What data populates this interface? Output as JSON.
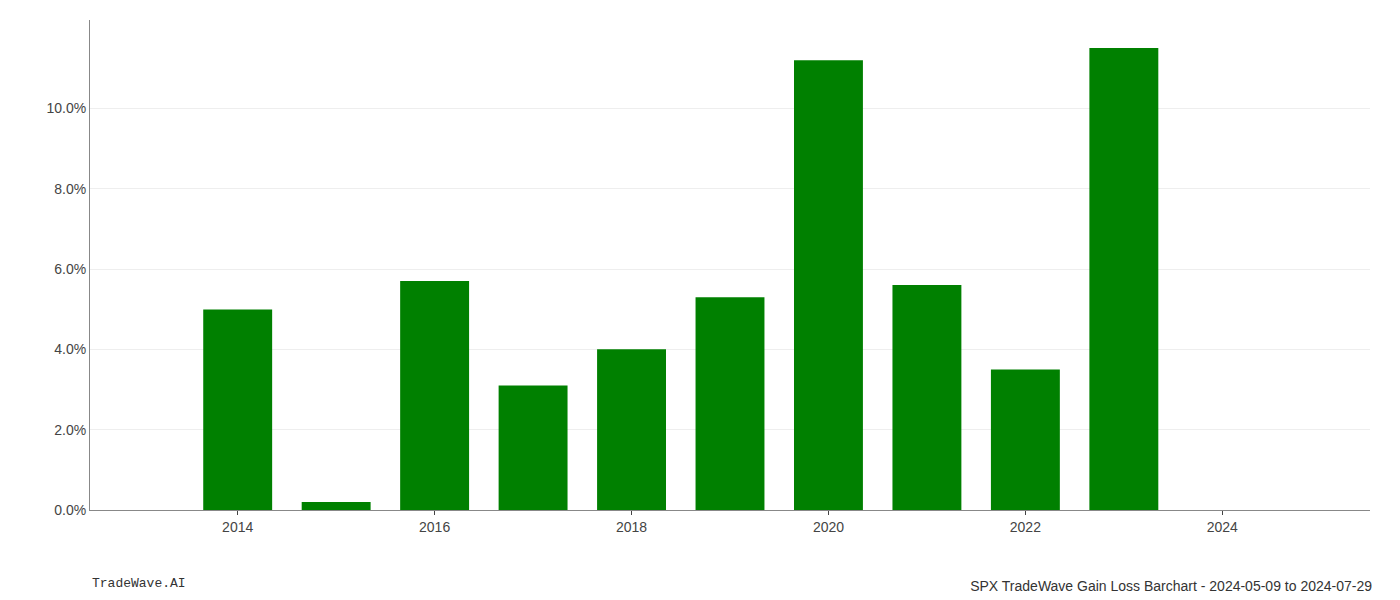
{
  "chart_data": {
    "type": "bar",
    "title": "SPX TradeWave Gain Loss Barchart - 2024-05-09 to 2024-07-29",
    "annotations": [
      "TradeWave.AI"
    ],
    "x": [
      2014,
      2015,
      2016,
      2017,
      2018,
      2019,
      2020,
      2021,
      2022,
      2023,
      2024
    ],
    "values": [
      0.0499,
      0.002,
      0.057,
      0.031,
      0.04,
      0.053,
      0.112,
      0.056,
      0.035,
      0.115,
      null
    ],
    "color": "#008000",
    "xlim": [
      2012.5,
      2025.5
    ],
    "xticks": [
      2014,
      2016,
      2018,
      2020,
      2022,
      2024
    ],
    "ylim": [
      0,
      0.122
    ],
    "yticks": [
      {
        "value": 0.0,
        "label": "0.0%"
      },
      {
        "value": 0.02,
        "label": "2.0%"
      },
      {
        "value": 0.04,
        "label": "4.0%"
      },
      {
        "value": 0.06,
        "label": "6.0%"
      },
      {
        "value": 0.08,
        "label": "8.0%"
      },
      {
        "value": 0.1,
        "label": "10.0%"
      }
    ],
    "grid": true
  }
}
